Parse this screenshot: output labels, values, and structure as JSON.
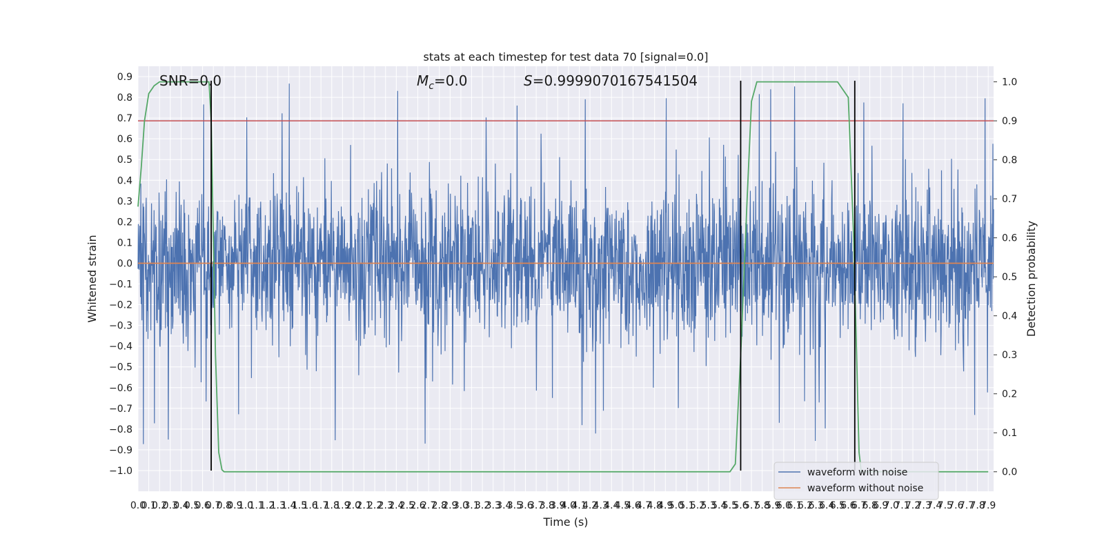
{
  "chart_data": {
    "type": "line",
    "title": "stats at each timestep for test data 70 [signal=0.0]",
    "xlabel": "Time (s)",
    "ylabel": "Whitened strain",
    "ylabel_right": "Detection probability",
    "xlim": [
      0.0,
      7.95
    ],
    "ylim": [
      -1.1,
      0.95
    ],
    "ylim_right": [
      -0.05,
      1.04
    ],
    "x_ticks": [
      "0.0",
      "0.1",
      "0.2",
      "0.3",
      "0.4",
      "0.5",
      "0.6",
      "0.7",
      "0.8",
      "0.9",
      "1.0",
      "1.1",
      "1.2",
      "1.3",
      "1.4",
      "1.5",
      "1.6",
      "1.7",
      "1.8",
      "1.9",
      "2.0",
      "2.1",
      "2.2",
      "2.3",
      "2.4",
      "2.5",
      "2.6",
      "2.7",
      "2.8",
      "2.9",
      "3.0",
      "3.1",
      "3.2",
      "3.3",
      "3.4",
      "3.5",
      "3.6",
      "3.7",
      "3.8",
      "3.9",
      "4.0",
      "4.1",
      "4.2",
      "4.3",
      "4.4",
      "4.5",
      "4.6",
      "4.7",
      "4.8",
      "4.9",
      "5.0",
      "5.1",
      "5.2",
      "5.3",
      "5.4",
      "5.5",
      "5.6",
      "5.7",
      "5.8",
      "5.9",
      "6.0",
      "6.1",
      "6.2",
      "6.3",
      "6.4",
      "6.5",
      "6.6",
      "6.7",
      "6.8",
      "6.9",
      "7.0",
      "7.1",
      "7.2",
      "7.3",
      "7.4",
      "7.5",
      "7.6",
      "7.7",
      "7.8",
      "7.9"
    ],
    "y_ticks_left": [
      "0.9",
      "0.8",
      "0.7",
      "0.6",
      "0.5",
      "0.4",
      "0.3",
      "0.2",
      "0.1",
      "0.0",
      "−0.1",
      "−0.2",
      "−0.3",
      "−0.4",
      "−0.5",
      "−0.6",
      "−0.7",
      "−0.8",
      "−0.9",
      "−1.0"
    ],
    "y_tick_values_left": [
      0.9,
      0.8,
      0.7,
      0.6,
      0.5,
      0.4,
      0.3,
      0.2,
      0.1,
      0.0,
      -0.1,
      -0.2,
      -0.3,
      -0.4,
      -0.5,
      -0.6,
      -0.7,
      -0.8,
      -0.9,
      -1.0
    ],
    "y_ticks_right": [
      "1.0",
      "0.9",
      "0.8",
      "0.7",
      "0.6",
      "0.5",
      "0.4",
      "0.3",
      "0.2",
      "0.1",
      "0.0"
    ],
    "y_tick_values_right": [
      1.0,
      0.9,
      0.8,
      0.7,
      0.6,
      0.5,
      0.4,
      0.3,
      0.2,
      0.1,
      0.0
    ],
    "series": [
      {
        "name": "waveform with noise",
        "color": "#4c72b0",
        "description": "dense noise, typical envelope about ±0.35, peaks up to about 0.88 and down to about -0.97",
        "envelope": 0.35,
        "peak_max": 0.88,
        "peak_min": -0.97
      },
      {
        "name": "waveform without noise",
        "color": "#dd8452",
        "values_constant": 0.0
      }
    ],
    "detection_probability": {
      "axis": "right",
      "color": "#55a868",
      "x": [
        0.0,
        0.03,
        0.06,
        0.1,
        0.15,
        0.2,
        0.25,
        0.3,
        0.4,
        0.5,
        0.6,
        0.66,
        0.68,
        0.7,
        0.72,
        0.75,
        0.78,
        0.8,
        0.83,
        0.9,
        1.0,
        2.0,
        3.0,
        4.0,
        5.0,
        5.5,
        5.55,
        5.6,
        5.66,
        5.7,
        5.75,
        5.8,
        6.0,
        6.5,
        6.6,
        6.65,
        6.7,
        6.72,
        6.75,
        7.0,
        7.5,
        7.9
      ],
      "y": [
        0.68,
        0.78,
        0.9,
        0.97,
        0.99,
        1.0,
        1.0,
        1.0,
        1.0,
        1.0,
        1.0,
        1.0,
        0.9,
        0.6,
        0.3,
        0.05,
        0.005,
        0.0,
        0.0,
        0.0,
        0.0,
        0.0,
        0.0,
        0.0,
        0.0,
        0.0,
        0.02,
        0.3,
        0.7,
        0.95,
        1.0,
        1.0,
        1.0,
        1.0,
        0.96,
        0.6,
        0.05,
        0.0,
        0.0,
        0.0,
        0.0,
        0.0
      ]
    },
    "threshold": {
      "value_right": 0.9,
      "color": "#c44e52"
    },
    "vertical_markers": {
      "x": [
        0.68,
        5.6,
        6.66
      ],
      "color": "#000000",
      "ymin": -1.0,
      "ymax": 0.88
    },
    "annotations": {
      "snr": "SNR=0.0",
      "mc_symbol": "M",
      "mc_sub": "c",
      "mc_value": "=0.0",
      "s_symbol": "S",
      "s_value": "=0.9999070167541504"
    },
    "legend": {
      "position": "lower right",
      "items": [
        "waveform with noise",
        "waveform without noise"
      ]
    }
  }
}
